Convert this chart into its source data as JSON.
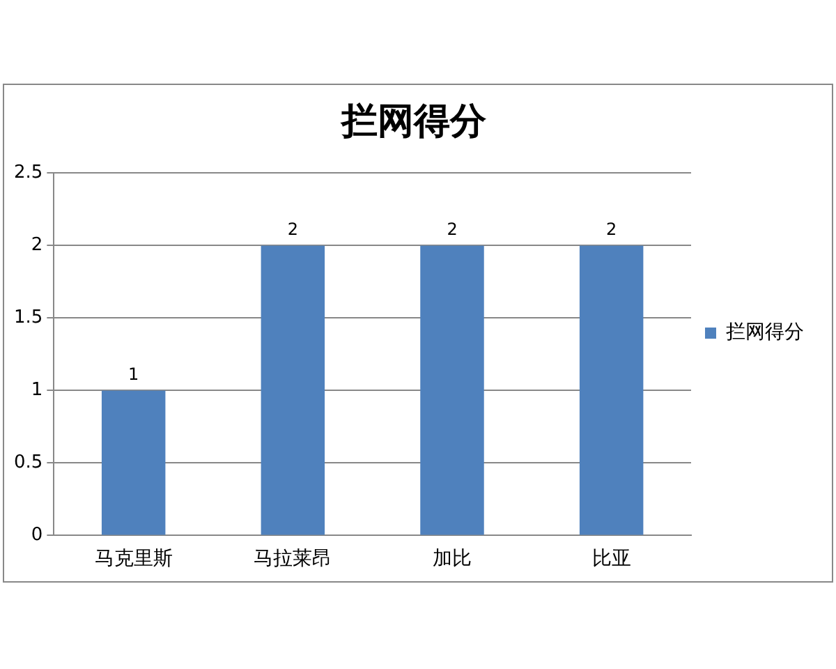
{
  "chart_data": {
    "type": "bar",
    "title": "拦网得分",
    "categories": [
      "马克里斯",
      "马拉莱昂",
      "加比",
      "比亚"
    ],
    "series": [
      {
        "name": "拦网得分",
        "color": "#4f81bd",
        "values": [
          1,
          2,
          2,
          2
        ]
      }
    ],
    "ylim": [
      0,
      2.5
    ],
    "yticks": [
      0,
      0.5,
      1,
      1.5,
      2,
      2.5
    ],
    "grid": "y",
    "legend": "right",
    "data_labels": true
  }
}
